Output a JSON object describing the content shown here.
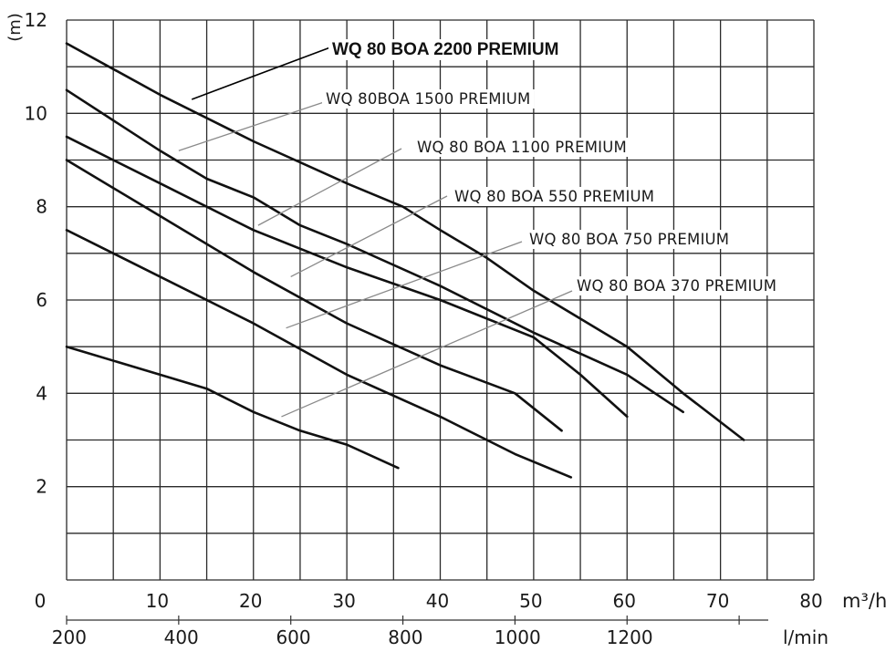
{
  "chart_data": {
    "type": "line",
    "ylabel": "(m)",
    "xlabel": "m³/h",
    "xlabel_secondary": "l/min",
    "xlim": [
      0,
      80
    ],
    "ylim": [
      0,
      12
    ],
    "x_ticks": [
      0,
      10,
      20,
      30,
      40,
      50,
      60,
      70,
      80
    ],
    "x_tick_labels": [
      "0",
      "10",
      "20",
      "30",
      "40",
      "50",
      "60",
      "70",
      "80"
    ],
    "y_ticks": [
      2,
      4,
      6,
      8,
      10,
      12
    ],
    "y_tick_labels": [
      "2",
      "4",
      "6",
      "8",
      "10",
      "12"
    ],
    "secondary_ticks": [
      200,
      400,
      600,
      800,
      1000,
      1200
    ],
    "secondary_tick_labels": [
      "200",
      "400",
      "600",
      "800",
      "1000",
      "1200"
    ],
    "grid": true,
    "series": [
      {
        "name": "WQ 80 BOA 2200 PREMIUM",
        "x": [
          0,
          10,
          20,
          30,
          36,
          40,
          45,
          50,
          55,
          60,
          66,
          72.5
        ],
        "y": [
          11.5,
          10.4,
          9.4,
          8.5,
          8.0,
          7.5,
          6.9,
          6.2,
          5.6,
          5.0,
          4.0,
          3.0
        ]
      },
      {
        "name": "WQ 80BOA 1500 PREMIUM",
        "x": [
          0,
          10,
          15,
          20,
          25,
          30,
          40,
          50,
          60,
          66
        ],
        "y": [
          10.5,
          9.2,
          8.6,
          8.2,
          7.6,
          7.2,
          6.3,
          5.3,
          4.4,
          3.6
        ]
      },
      {
        "name": "WQ 80 BOA 1100 PREMIUM",
        "x": [
          0,
          10,
          20,
          30,
          40,
          50,
          55,
          60
        ],
        "y": [
          9.5,
          8.5,
          7.5,
          6.7,
          6.0,
          5.2,
          4.4,
          3.5
        ]
      },
      {
        "name": "WQ 80 BOA 550 PREMIUM",
        "x": [
          0,
          10,
          20,
          30,
          40,
          48,
          53
        ],
        "y": [
          9.0,
          7.8,
          6.6,
          5.5,
          4.6,
          4.0,
          3.2
        ]
      },
      {
        "name": "WQ 80 BOA 750 PREMIUM",
        "x": [
          0,
          10,
          20,
          30,
          40,
          48,
          54
        ],
        "y": [
          7.5,
          6.5,
          5.5,
          4.4,
          3.5,
          2.7,
          2.2
        ]
      },
      {
        "name": "WQ 80 BOA 370 PREMIUM",
        "x": [
          0,
          10,
          15,
          20,
          25,
          30,
          35.5
        ],
        "y": [
          5.0,
          4.4,
          4.1,
          3.6,
          3.2,
          2.9,
          2.4
        ]
      }
    ],
    "annotations": [
      {
        "series": 0,
        "text": "WQ 80 BOA 2200 PREMIUM",
        "bold": true,
        "at": [
          13.4,
          10.3
        ]
      },
      {
        "series": 1,
        "text": "WQ 80BOA 1500 PREMIUM",
        "bold": false,
        "at": [
          12,
          9.2
        ]
      },
      {
        "series": 2,
        "text": "WQ 80 BOA 1100 PREMIUM",
        "bold": false,
        "at": [
          20.5,
          7.6
        ]
      },
      {
        "series": 3,
        "text": "WQ 80 BOA 550 PREMIUM",
        "bold": false,
        "at": [
          24,
          6.5
        ]
      },
      {
        "series": 4,
        "text": "WQ 80 BOA 750 PREMIUM",
        "bold": false,
        "at": [
          23.5,
          5.4
        ]
      },
      {
        "series": 5,
        "text": "WQ 80 BOA 370 PREMIUM",
        "bold": false,
        "at": [
          23,
          3.5
        ]
      }
    ]
  }
}
